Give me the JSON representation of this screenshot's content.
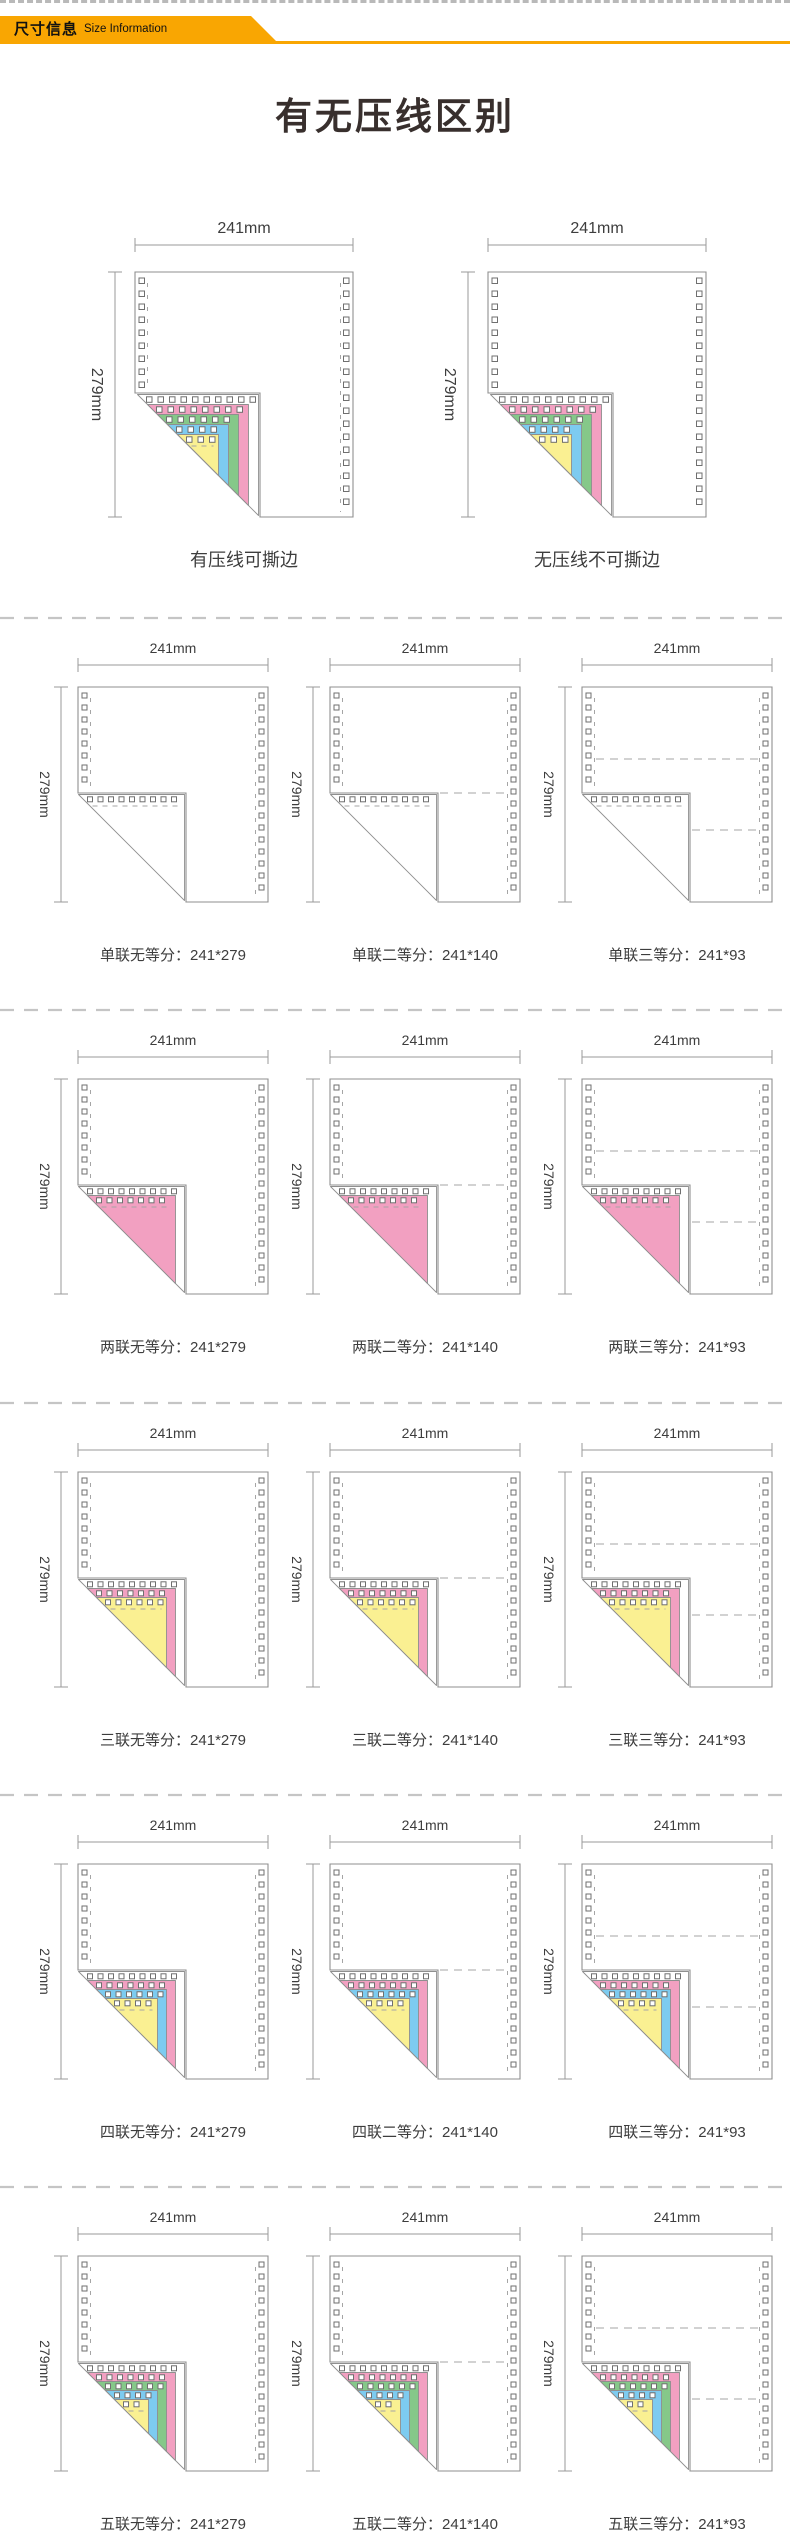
{
  "header": {
    "badge_cn": "尺寸信息",
    "badge_en": "Size Information",
    "accent_color": "#F9A602"
  },
  "section_title": "有无压线区别",
  "dim_labels": {
    "width": "241mm",
    "height": "279mm"
  },
  "colors": {
    "text": "#3d3d3d",
    "title": "#382f2d",
    "paper_outline": "#8f8f8f",
    "hole_outline": "#6f6f6f",
    "dash": "#a5a5a5",
    "dim_line": "#9a9a9a",
    "separator": "#c5c5c5",
    "ply_pink": "#F2A0C1",
    "ply_green": "#85C889",
    "ply_blue": "#7DCBF0",
    "ply_yellow": "#FAF092"
  },
  "comparison": {
    "panels": [
      {
        "caption": "有压线可撕边",
        "crease_line": true,
        "ply_stack": [
          "white",
          "pink",
          "green",
          "blue",
          "yellow"
        ]
      },
      {
        "caption": "无压线不可撕边",
        "crease_line": false,
        "ply_stack": [
          "white",
          "pink",
          "green",
          "blue",
          "yellow"
        ]
      }
    ]
  },
  "size_grid": {
    "rows": [
      {
        "plies": 1,
        "ply_stack": [
          "white"
        ],
        "cells": [
          {
            "caption": "单联无等分：241*279",
            "split": "none"
          },
          {
            "caption": "单联二等分：241*140",
            "split": "half"
          },
          {
            "caption": "单联三等分：241*93",
            "split": "third"
          }
        ]
      },
      {
        "plies": 2,
        "ply_stack": [
          "white",
          "pink"
        ],
        "cells": [
          {
            "caption": "两联无等分：241*279",
            "split": "none"
          },
          {
            "caption": "两联二等分：241*140",
            "split": "half"
          },
          {
            "caption": "两联三等分：241*93",
            "split": "third"
          }
        ]
      },
      {
        "plies": 3,
        "ply_stack": [
          "white",
          "pink",
          "yellow"
        ],
        "cells": [
          {
            "caption": "三联无等分：241*279",
            "split": "none"
          },
          {
            "caption": "三联二等分：241*140",
            "split": "half"
          },
          {
            "caption": "三联三等分：241*93",
            "split": "third"
          }
        ]
      },
      {
        "plies": 4,
        "ply_stack": [
          "white",
          "pink",
          "blue",
          "yellow"
        ],
        "cells": [
          {
            "caption": "四联无等分：241*279",
            "split": "none"
          },
          {
            "caption": "四联二等分：241*140",
            "split": "half"
          },
          {
            "caption": "四联三等分：241*93",
            "split": "third"
          }
        ]
      },
      {
        "plies": 5,
        "ply_stack": [
          "white",
          "pink",
          "green",
          "blue",
          "yellow"
        ],
        "cells": [
          {
            "caption": "五联无等分：241*279",
            "split": "none"
          },
          {
            "caption": "五联二等分：241*140",
            "split": "half"
          },
          {
            "caption": "五联三等分：241*93",
            "split": "third"
          }
        ]
      }
    ]
  }
}
